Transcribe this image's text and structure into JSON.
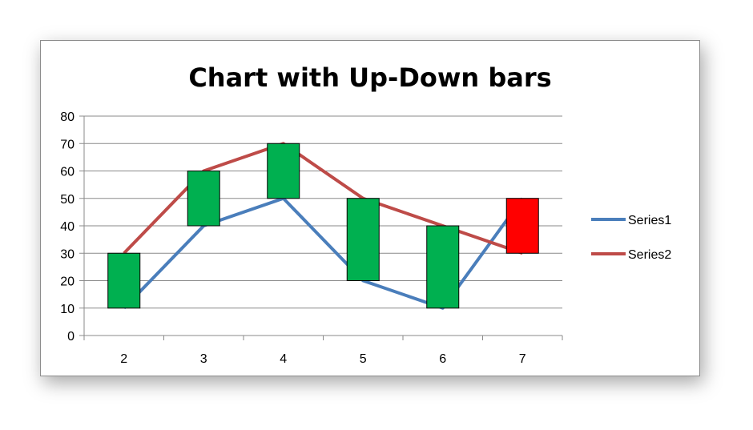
{
  "chart_data": {
    "type": "line",
    "title": "Chart with Up-Down bars",
    "xlabel": "",
    "ylabel": "",
    "categories": [
      "2",
      "3",
      "4",
      "5",
      "6",
      "7"
    ],
    "ylim": [
      0,
      80
    ],
    "yticks": [
      0,
      10,
      20,
      30,
      40,
      50,
      60,
      70,
      80
    ],
    "grid": true,
    "legend": "right",
    "series": [
      {
        "name": "Series1",
        "values": [
          10,
          40,
          50,
          20,
          10,
          50
        ],
        "color": "#4a7ebb"
      },
      {
        "name": "Series2",
        "values": [
          30,
          60,
          70,
          50,
          40,
          30
        ],
        "color": "#be4b48"
      }
    ],
    "up_down_bars": {
      "up_color": "#00b050",
      "down_color": "#ff0000"
    }
  }
}
